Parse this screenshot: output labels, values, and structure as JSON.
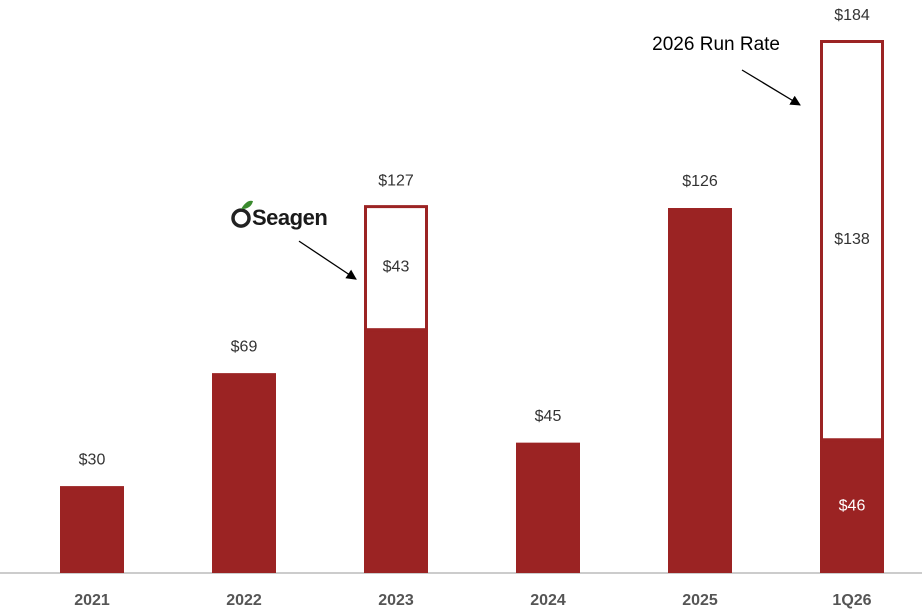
{
  "chart_data": {
    "type": "stacked-bar",
    "categories": [
      "2021",
      "2022",
      "2023",
      "2024",
      "2025",
      "1Q26"
    ],
    "series": [
      {
        "color": "#9b2323",
        "values": [
          30,
          69,
          84,
          45,
          126,
          46
        ],
        "value_labels": [
          "$30",
          "$69",
          null,
          "$45",
          "$126",
          "$46"
        ]
      },
      {
        "color": "#9b2323",
        "values": [
          null,
          null,
          43,
          null,
          null,
          138
        ],
        "value_labels": [
          null,
          null,
          "$43",
          null,
          null,
          "$138"
        ]
      }
    ],
    "totals": [
      null,
      null,
      127,
      null,
      null,
      184
    ],
    "total_labels": [
      null,
      null,
      "$127",
      null,
      null,
      "$184"
    ],
    "ylim": [
      0,
      184
    ],
    "annotations": [
      {
        "text": "2026 Run Rate",
        "category": 5
      },
      {
        "text": "Seagen",
        "category": 2
      }
    ]
  }
}
